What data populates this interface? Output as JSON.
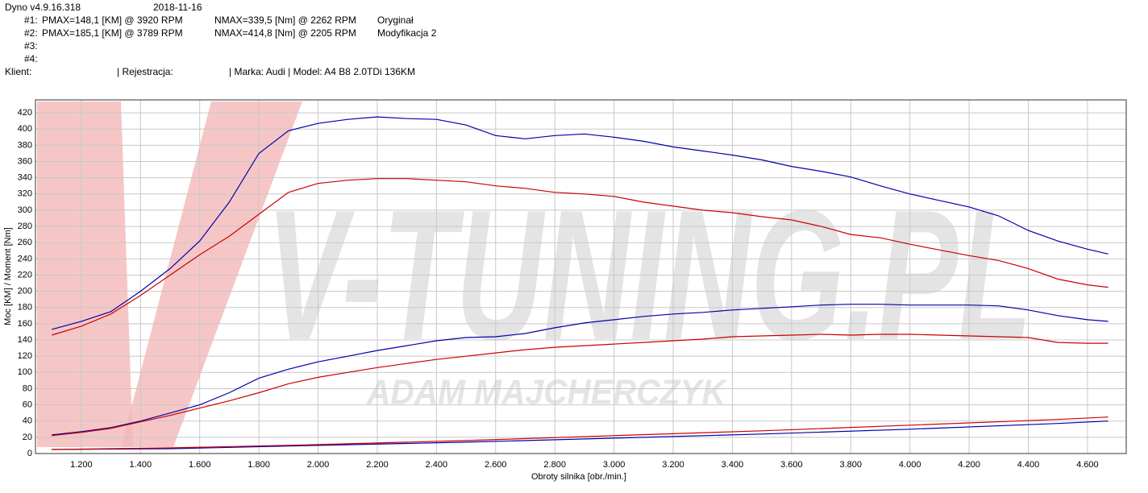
{
  "chart_data": {
    "type": "line",
    "title": "Dyno v4.9.16.318",
    "date": "2018-11-16",
    "runs": [
      {
        "label": "#1:",
        "power": "PMAX=148,1 [KM] @ 3920 RPM",
        "torque": "NMAX=339,5 [Nm] @ 2262 RPM",
        "name": "Oryginał"
      },
      {
        "label": "#2:",
        "power": "PMAX=185,1 [KM] @ 3789 RPM",
        "torque": "NMAX=414,8 [Nm] @ 2205 RPM",
        "name": "Modyfikacja 2"
      },
      {
        "label": "#3:"
      },
      {
        "label": "#4:"
      }
    ],
    "client": [
      "Klient:",
      "| Rejestracja:",
      "| Marka: Audi | Model:  A4 B8 2.0TDi  136KM"
    ],
    "watermark": [
      "V-TUNING.PL",
      "ADAM MAJCHERCZYK"
    ],
    "x_label": "Obroty silnika [obr./min.]",
    "y_label": "Moc [KM] / Moment [Nm]",
    "xlim": [
      1045,
      4731
    ],
    "ylim": [
      0,
      436
    ],
    "xticks": [
      {
        "value": 1200,
        "label": "1.200"
      },
      {
        "value": 1400,
        "label": "1.400"
      },
      {
        "value": 1600,
        "label": "1.600"
      },
      {
        "value": 1800,
        "label": "1.800"
      },
      {
        "value": 2000,
        "label": "2.000"
      },
      {
        "value": 2200,
        "label": "2.200"
      },
      {
        "value": 2400,
        "label": "2.400"
      },
      {
        "value": 2600,
        "label": "2.600"
      },
      {
        "value": 2800,
        "label": "2.800"
      },
      {
        "value": 3000,
        "label": "3.000"
      },
      {
        "value": 3200,
        "label": "3.200"
      },
      {
        "value": 3400,
        "label": "3.400"
      },
      {
        "value": 3600,
        "label": "3.600"
      },
      {
        "value": 3800,
        "label": "3.800"
      },
      {
        "value": 4000,
        "label": "4.000"
      },
      {
        "value": 4200,
        "label": "4.200"
      },
      {
        "value": 4400,
        "label": "4.400"
      },
      {
        "value": 4600,
        "label": "4.600"
      }
    ],
    "yticks": [
      0,
      20,
      40,
      60,
      80,
      100,
      120,
      140,
      160,
      180,
      200,
      220,
      240,
      260,
      280,
      300,
      320,
      340,
      360,
      380,
      400,
      420
    ],
    "grid": true,
    "series": [
      {
        "color": "#0000aa",
        "x": [
          1100,
          1200,
          1300,
          1400,
          1500,
          1600,
          1700,
          1800,
          1900,
          2000,
          2100,
          2200,
          2300,
          2400,
          2500,
          2600,
          2700,
          2800,
          2900,
          3000,
          3100,
          3200,
          3300,
          3400,
          3500,
          3600,
          3700,
          3800,
          3900,
          4000,
          4100,
          4200,
          4300,
          4400,
          4500,
          4600,
          4670
        ],
        "values": [
          153,
          163,
          175,
          200,
          228,
          262,
          310,
          370,
          398,
          407,
          412,
          415,
          413,
          412,
          405,
          392,
          388,
          392,
          394,
          390,
          385,
          378,
          373,
          368,
          362,
          354,
          348,
          341,
          330,
          320,
          312,
          304,
          293,
          275,
          262,
          252,
          246
        ]
      },
      {
        "color": "#cc0000",
        "x": [
          1100,
          1200,
          1300,
          1400,
          1500,
          1600,
          1700,
          1800,
          1900,
          2000,
          2100,
          2200,
          2300,
          2400,
          2500,
          2600,
          2700,
          2800,
          2900,
          3000,
          3100,
          3200,
          3300,
          3400,
          3500,
          3600,
          3700,
          3800,
          3900,
          4000,
          4100,
          4200,
          4300,
          4400,
          4500,
          4600,
          4670
        ],
        "values": [
          146,
          157,
          172,
          195,
          220,
          245,
          268,
          295,
          322,
          333,
          337,
          339,
          339,
          337,
          335,
          330,
          327,
          322,
          320,
          317,
          310,
          305,
          300,
          297,
          292,
          288,
          280,
          270,
          266,
          258,
          251,
          244,
          238,
          228,
          215,
          208,
          205
        ]
      },
      {
        "color": "#0000aa",
        "x": [
          1100,
          1200,
          1300,
          1400,
          1500,
          1600,
          1700,
          1800,
          1900,
          2000,
          2100,
          2200,
          2300,
          2400,
          2500,
          2600,
          2700,
          2800,
          2900,
          3000,
          3100,
          3200,
          3300,
          3400,
          3500,
          3600,
          3700,
          3800,
          3900,
          4000,
          4100,
          4200,
          4300,
          4400,
          4500,
          4600,
          4670
        ],
        "values": [
          23,
          27,
          32,
          40,
          50,
          60,
          75,
          93,
          104,
          113,
          120,
          127,
          133,
          139,
          143,
          144,
          148,
          155,
          161,
          165,
          169,
          172,
          174,
          177,
          179,
          181,
          183,
          184,
          184,
          183,
          183,
          183,
          182,
          177,
          170,
          165,
          163
        ]
      },
      {
        "color": "#cc0000",
        "x": [
          1100,
          1200,
          1300,
          1400,
          1500,
          1600,
          1700,
          1800,
          1900,
          2000,
          2100,
          2200,
          2300,
          2400,
          2500,
          2600,
          2700,
          2800,
          2900,
          3000,
          3100,
          3200,
          3300,
          3400,
          3500,
          3600,
          3700,
          3800,
          3900,
          4000,
          4100,
          4200,
          4300,
          4400,
          4500,
          4600,
          4670
        ],
        "values": [
          22,
          26,
          31,
          39,
          47,
          56,
          65,
          75,
          86,
          94,
          100,
          106,
          111,
          116,
          120,
          124,
          128,
          131,
          133,
          135,
          137,
          139,
          141,
          144,
          145,
          146,
          147,
          146,
          147,
          147,
          146,
          145,
          144,
          143,
          137,
          136,
          136
        ]
      },
      {
        "color": "#0000aa",
        "x": [
          1100,
          1500,
          2000,
          2500,
          3000,
          3500,
          4000,
          4500,
          4670
        ],
        "values": [
          5,
          6,
          10,
          14,
          19,
          24,
          30,
          37,
          40
        ]
      },
      {
        "color": "#cc0000",
        "x": [
          1100,
          1500,
          2000,
          2500,
          3000,
          3500,
          4000,
          4500,
          4670
        ],
        "values": [
          5,
          7,
          11,
          16,
          22,
          28,
          35,
          42,
          45
        ]
      }
    ]
  }
}
